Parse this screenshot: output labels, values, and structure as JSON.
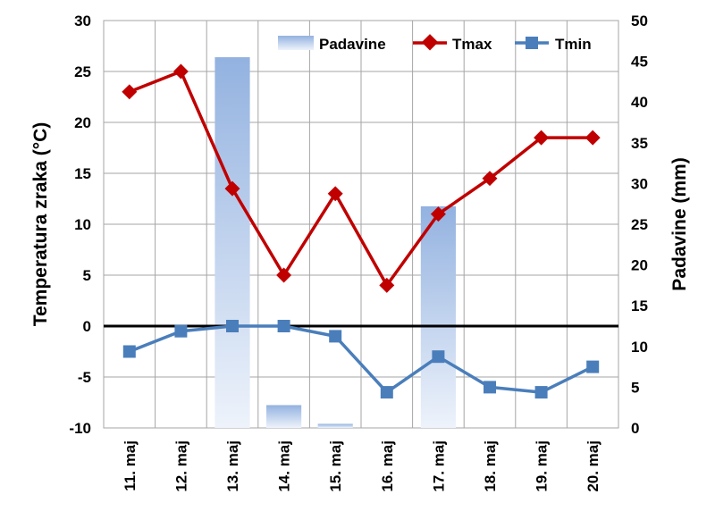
{
  "chart_data": {
    "type": "bar+line",
    "categories": [
      "11. maj",
      "12. maj",
      "13. maj",
      "14. maj",
      "15. maj",
      "16. maj",
      "17. maj",
      "18. maj",
      "19. maj",
      "20. maj"
    ],
    "bars": {
      "name": "Padavine",
      "axis": "right",
      "values": [
        0,
        0,
        45.5,
        2.8,
        0.5,
        0,
        27.2,
        0,
        0,
        0
      ],
      "color_top": "#93b2e0",
      "color_bottom": "#eef3fb"
    },
    "series": [
      {
        "name": "Tmax",
        "axis": "left",
        "color": "#c00000",
        "marker": "diamond",
        "values": [
          23,
          25,
          13.5,
          5,
          13,
          4,
          11,
          14.5,
          18.5,
          18.5
        ]
      },
      {
        "name": "Tmin",
        "axis": "left",
        "color": "#4a7ebb",
        "marker": "square",
        "values": [
          -2.5,
          -0.5,
          0,
          0,
          -1,
          -6.5,
          -3,
          -6,
          -6.5,
          -4
        ]
      }
    ],
    "ylabel": "Temperatura zraka (°C)",
    "y2label": "Padavine (mm)",
    "ylim": [
      -10,
      30
    ],
    "yticks": [
      "30",
      "25",
      "20",
      "15",
      "10",
      "5",
      "0",
      "-5",
      "-10"
    ],
    "y2lim": [
      0,
      50
    ],
    "y2ticks": [
      "50",
      "45",
      "40",
      "35",
      "30",
      "25",
      "20",
      "15",
      "10",
      "5",
      "0"
    ],
    "grid": true,
    "legend_position": "top-right",
    "zero_line": true
  }
}
